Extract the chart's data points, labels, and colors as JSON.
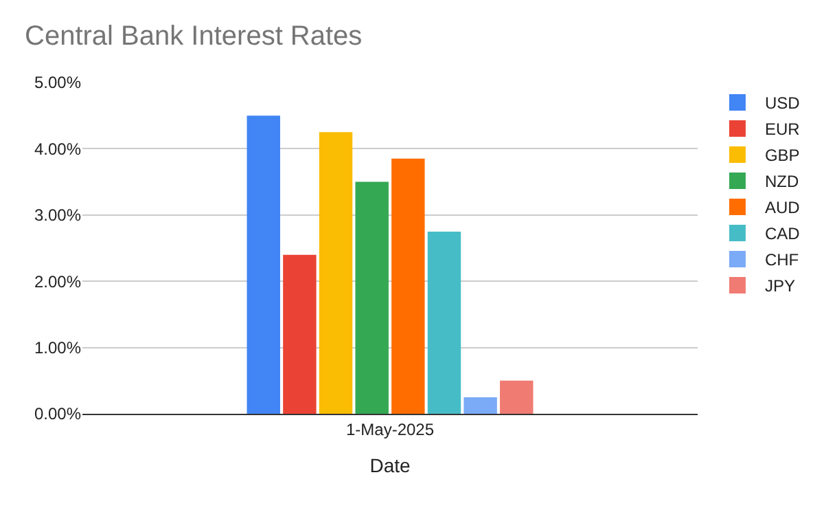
{
  "chart_data": {
    "type": "bar",
    "title": "Central Bank Interest Rates",
    "xlabel": "Date",
    "categories": [
      "1-May-2025"
    ],
    "series": [
      {
        "name": "USD",
        "color": "#4285f4",
        "values": [
          4.5
        ]
      },
      {
        "name": "EUR",
        "color": "#ea4335",
        "values": [
          2.4
        ]
      },
      {
        "name": "GBP",
        "color": "#fbbc04",
        "values": [
          4.25
        ]
      },
      {
        "name": "NZD",
        "color": "#34a853",
        "values": [
          3.5
        ]
      },
      {
        "name": "AUD",
        "color": "#ff6d01",
        "values": [
          3.85
        ]
      },
      {
        "name": "CAD",
        "color": "#46bdc6",
        "values": [
          2.75
        ]
      },
      {
        "name": "CHF",
        "color": "#7baaf7",
        "values": [
          0.25
        ]
      },
      {
        "name": "JPY",
        "color": "#f07b72",
        "values": [
          0.5
        ]
      }
    ],
    "ylim": [
      0,
      5
    ],
    "yticks": [
      {
        "value": 0,
        "label": "0.00%"
      },
      {
        "value": 1,
        "label": "1.00%"
      },
      {
        "value": 2,
        "label": "2.00%"
      },
      {
        "value": 3,
        "label": "3.00%"
      },
      {
        "value": 4,
        "label": "4.00%"
      },
      {
        "value": 5,
        "label": "5.00%"
      }
    ],
    "grid": "y",
    "legend": "right"
  }
}
